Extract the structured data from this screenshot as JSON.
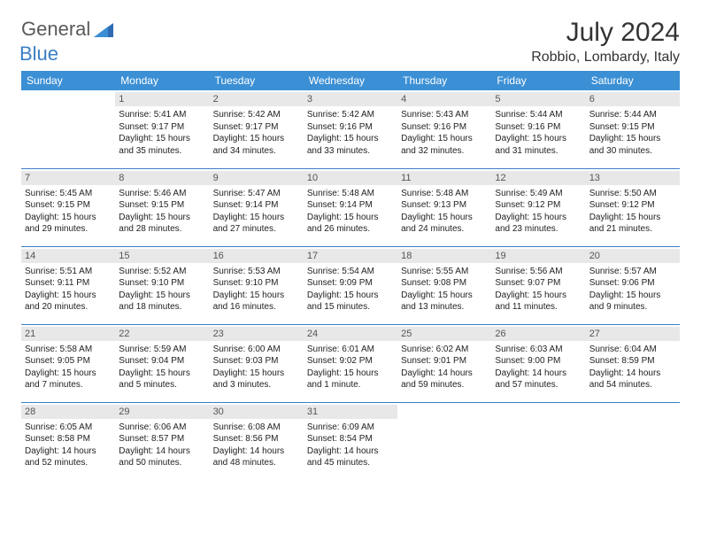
{
  "brand": {
    "part1": "General",
    "part2": "Blue"
  },
  "title": "July 2024",
  "location": "Robbio, Lombardy, Italy",
  "colors": {
    "header_bg": "#3b8fd4",
    "header_text": "#ffffff",
    "daynum_bg": "#e8e8e8",
    "daynum_text": "#555555",
    "border": "#3b7fc4",
    "brand_gray": "#5a5a5a",
    "brand_blue": "#3b7fc4",
    "text": "#222222",
    "background": "#ffffff"
  },
  "typography": {
    "title_fontsize": 30,
    "location_fontsize": 16,
    "weekday_fontsize": 12,
    "daynum_fontsize": 11,
    "cell_fontsize": 10
  },
  "weekdays": [
    "Sunday",
    "Monday",
    "Tuesday",
    "Wednesday",
    "Thursday",
    "Friday",
    "Saturday"
  ],
  "weeks": [
    [
      {
        "n": "",
        "sr": "",
        "ss": "",
        "dl1": "",
        "dl2": ""
      },
      {
        "n": "1",
        "sr": "Sunrise: 5:41 AM",
        "ss": "Sunset: 9:17 PM",
        "dl1": "Daylight: 15 hours",
        "dl2": "and 35 minutes."
      },
      {
        "n": "2",
        "sr": "Sunrise: 5:42 AM",
        "ss": "Sunset: 9:17 PM",
        "dl1": "Daylight: 15 hours",
        "dl2": "and 34 minutes."
      },
      {
        "n": "3",
        "sr": "Sunrise: 5:42 AM",
        "ss": "Sunset: 9:16 PM",
        "dl1": "Daylight: 15 hours",
        "dl2": "and 33 minutes."
      },
      {
        "n": "4",
        "sr": "Sunrise: 5:43 AM",
        "ss": "Sunset: 9:16 PM",
        "dl1": "Daylight: 15 hours",
        "dl2": "and 32 minutes."
      },
      {
        "n": "5",
        "sr": "Sunrise: 5:44 AM",
        "ss": "Sunset: 9:16 PM",
        "dl1": "Daylight: 15 hours",
        "dl2": "and 31 minutes."
      },
      {
        "n": "6",
        "sr": "Sunrise: 5:44 AM",
        "ss": "Sunset: 9:15 PM",
        "dl1": "Daylight: 15 hours",
        "dl2": "and 30 minutes."
      }
    ],
    [
      {
        "n": "7",
        "sr": "Sunrise: 5:45 AM",
        "ss": "Sunset: 9:15 PM",
        "dl1": "Daylight: 15 hours",
        "dl2": "and 29 minutes."
      },
      {
        "n": "8",
        "sr": "Sunrise: 5:46 AM",
        "ss": "Sunset: 9:15 PM",
        "dl1": "Daylight: 15 hours",
        "dl2": "and 28 minutes."
      },
      {
        "n": "9",
        "sr": "Sunrise: 5:47 AM",
        "ss": "Sunset: 9:14 PM",
        "dl1": "Daylight: 15 hours",
        "dl2": "and 27 minutes."
      },
      {
        "n": "10",
        "sr": "Sunrise: 5:48 AM",
        "ss": "Sunset: 9:14 PM",
        "dl1": "Daylight: 15 hours",
        "dl2": "and 26 minutes."
      },
      {
        "n": "11",
        "sr": "Sunrise: 5:48 AM",
        "ss": "Sunset: 9:13 PM",
        "dl1": "Daylight: 15 hours",
        "dl2": "and 24 minutes."
      },
      {
        "n": "12",
        "sr": "Sunrise: 5:49 AM",
        "ss": "Sunset: 9:12 PM",
        "dl1": "Daylight: 15 hours",
        "dl2": "and 23 minutes."
      },
      {
        "n": "13",
        "sr": "Sunrise: 5:50 AM",
        "ss": "Sunset: 9:12 PM",
        "dl1": "Daylight: 15 hours",
        "dl2": "and 21 minutes."
      }
    ],
    [
      {
        "n": "14",
        "sr": "Sunrise: 5:51 AM",
        "ss": "Sunset: 9:11 PM",
        "dl1": "Daylight: 15 hours",
        "dl2": "and 20 minutes."
      },
      {
        "n": "15",
        "sr": "Sunrise: 5:52 AM",
        "ss": "Sunset: 9:10 PM",
        "dl1": "Daylight: 15 hours",
        "dl2": "and 18 minutes."
      },
      {
        "n": "16",
        "sr": "Sunrise: 5:53 AM",
        "ss": "Sunset: 9:10 PM",
        "dl1": "Daylight: 15 hours",
        "dl2": "and 16 minutes."
      },
      {
        "n": "17",
        "sr": "Sunrise: 5:54 AM",
        "ss": "Sunset: 9:09 PM",
        "dl1": "Daylight: 15 hours",
        "dl2": "and 15 minutes."
      },
      {
        "n": "18",
        "sr": "Sunrise: 5:55 AM",
        "ss": "Sunset: 9:08 PM",
        "dl1": "Daylight: 15 hours",
        "dl2": "and 13 minutes."
      },
      {
        "n": "19",
        "sr": "Sunrise: 5:56 AM",
        "ss": "Sunset: 9:07 PM",
        "dl1": "Daylight: 15 hours",
        "dl2": "and 11 minutes."
      },
      {
        "n": "20",
        "sr": "Sunrise: 5:57 AM",
        "ss": "Sunset: 9:06 PM",
        "dl1": "Daylight: 15 hours",
        "dl2": "and 9 minutes."
      }
    ],
    [
      {
        "n": "21",
        "sr": "Sunrise: 5:58 AM",
        "ss": "Sunset: 9:05 PM",
        "dl1": "Daylight: 15 hours",
        "dl2": "and 7 minutes."
      },
      {
        "n": "22",
        "sr": "Sunrise: 5:59 AM",
        "ss": "Sunset: 9:04 PM",
        "dl1": "Daylight: 15 hours",
        "dl2": "and 5 minutes."
      },
      {
        "n": "23",
        "sr": "Sunrise: 6:00 AM",
        "ss": "Sunset: 9:03 PM",
        "dl1": "Daylight: 15 hours",
        "dl2": "and 3 minutes."
      },
      {
        "n": "24",
        "sr": "Sunrise: 6:01 AM",
        "ss": "Sunset: 9:02 PM",
        "dl1": "Daylight: 15 hours",
        "dl2": "and 1 minute."
      },
      {
        "n": "25",
        "sr": "Sunrise: 6:02 AM",
        "ss": "Sunset: 9:01 PM",
        "dl1": "Daylight: 14 hours",
        "dl2": "and 59 minutes."
      },
      {
        "n": "26",
        "sr": "Sunrise: 6:03 AM",
        "ss": "Sunset: 9:00 PM",
        "dl1": "Daylight: 14 hours",
        "dl2": "and 57 minutes."
      },
      {
        "n": "27",
        "sr": "Sunrise: 6:04 AM",
        "ss": "Sunset: 8:59 PM",
        "dl1": "Daylight: 14 hours",
        "dl2": "and 54 minutes."
      }
    ],
    [
      {
        "n": "28",
        "sr": "Sunrise: 6:05 AM",
        "ss": "Sunset: 8:58 PM",
        "dl1": "Daylight: 14 hours",
        "dl2": "and 52 minutes."
      },
      {
        "n": "29",
        "sr": "Sunrise: 6:06 AM",
        "ss": "Sunset: 8:57 PM",
        "dl1": "Daylight: 14 hours",
        "dl2": "and 50 minutes."
      },
      {
        "n": "30",
        "sr": "Sunrise: 6:08 AM",
        "ss": "Sunset: 8:56 PM",
        "dl1": "Daylight: 14 hours",
        "dl2": "and 48 minutes."
      },
      {
        "n": "31",
        "sr": "Sunrise: 6:09 AM",
        "ss": "Sunset: 8:54 PM",
        "dl1": "Daylight: 14 hours",
        "dl2": "and 45 minutes."
      },
      {
        "n": "",
        "sr": "",
        "ss": "",
        "dl1": "",
        "dl2": ""
      },
      {
        "n": "",
        "sr": "",
        "ss": "",
        "dl1": "",
        "dl2": ""
      },
      {
        "n": "",
        "sr": "",
        "ss": "",
        "dl1": "",
        "dl2": ""
      }
    ]
  ]
}
